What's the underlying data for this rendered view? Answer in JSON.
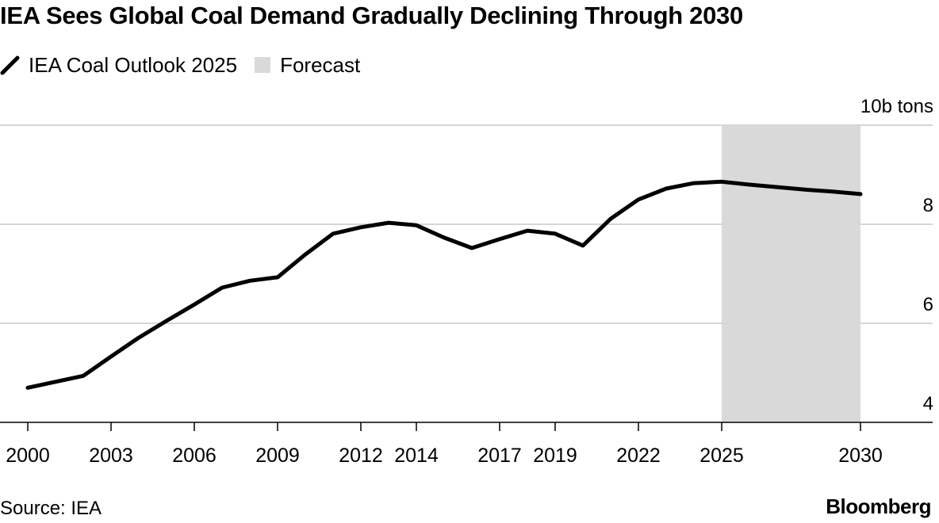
{
  "chart_data": {
    "type": "line",
    "title": "IEA Sees Global Coal Demand Gradually Declining Through 2030",
    "legend": [
      {
        "label": "IEA Coal Outlook 2025",
        "kind": "line",
        "color": "#000000"
      },
      {
        "label": "Forecast",
        "kind": "shade",
        "color": "#d9d9d9"
      }
    ],
    "legend_placement": "top-left",
    "ylabel": "10b tons",
    "y_unit_label": "10b tons",
    "ylim": [
      4,
      10
    ],
    "yticks": [
      4,
      6,
      8,
      10
    ],
    "ytick_labels": [
      "4",
      "6",
      "8",
      "10b tons"
    ],
    "xlim": [
      2000,
      2032
    ],
    "xticks": [
      2000,
      2003,
      2006,
      2009,
      2012,
      2014,
      2017,
      2019,
      2022,
      2025,
      2030
    ],
    "xtick_labels": [
      "2000",
      "2003",
      "2006",
      "2009",
      "2012",
      "2014",
      "2017",
      "2019",
      "2022",
      "2025",
      "2030"
    ],
    "grid": true,
    "forecast_range": [
      2025,
      2030
    ],
    "series": [
      {
        "name": "IEA Coal Outlook 2025",
        "color": "#000000",
        "x": [
          2000,
          2001,
          2002,
          2003,
          2004,
          2005,
          2006,
          2007,
          2008,
          2009,
          2010,
          2011,
          2012,
          2013,
          2014,
          2015,
          2016,
          2017,
          2018,
          2019,
          2020,
          2021,
          2022,
          2023,
          2024,
          2025,
          2026,
          2027,
          2028,
          2029,
          2030
        ],
        "values": [
          4.7,
          4.82,
          4.94,
          5.33,
          5.71,
          6.05,
          6.38,
          6.72,
          6.86,
          6.93,
          7.39,
          7.81,
          7.94,
          8.03,
          7.98,
          7.73,
          7.52,
          7.7,
          7.87,
          7.81,
          7.57,
          8.11,
          8.5,
          8.72,
          8.83,
          8.86,
          8.8,
          8.75,
          8.7,
          8.66,
          8.61
        ]
      }
    ]
  },
  "footer": {
    "source": "Source: IEA",
    "brand": "Bloomberg"
  },
  "colors": {
    "line": "#000000",
    "forecast_shade": "#d9d9d9",
    "gridline": "#d6d6d6",
    "axis": "#000000"
  }
}
